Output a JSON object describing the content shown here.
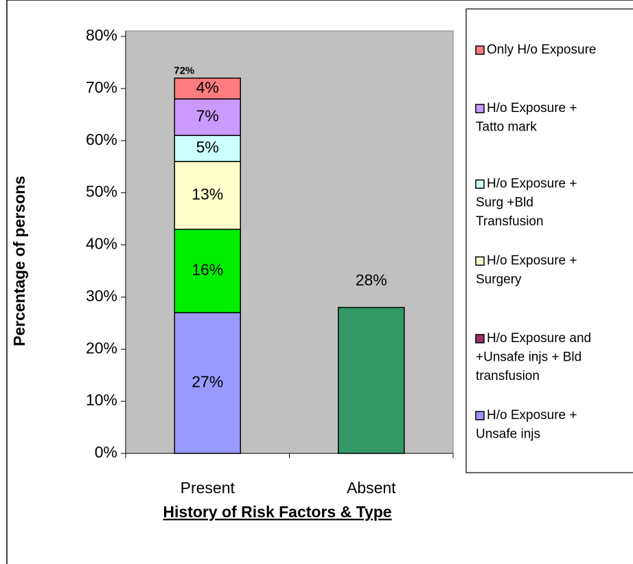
{
  "chart_data": {
    "type": "stacked_bar",
    "y_axis_label": "Percentage of persons",
    "x_axis_label": "History of Risk Factors & Type",
    "categories": [
      "Present",
      "Absent"
    ],
    "ylim": [
      0,
      80
    ],
    "yticks": [
      {
        "value": 0,
        "label": "0%"
      },
      {
        "value": 10,
        "label": "10%"
      },
      {
        "value": 20,
        "label": "20%"
      },
      {
        "value": 30,
        "label": "30%"
      },
      {
        "value": 40,
        "label": "40%"
      },
      {
        "value": 50,
        "label": "50%"
      },
      {
        "value": 60,
        "label": "60%"
      },
      {
        "value": 70,
        "label": "70%"
      },
      {
        "value": 80,
        "label": "80%"
      }
    ],
    "series": [
      {
        "name": "H/o Exposure +\nUnsafe injs",
        "color": "#9999ff",
        "values": [
          27,
          null
        ],
        "value_labels": [
          "27%",
          null
        ]
      },
      {
        "name": "H/o Exposure and\n+Unsafe injs + Bld\ntransfusion",
        "color": "#00ee00",
        "legend_color": "#993366",
        "values": [
          16,
          null
        ],
        "value_labels": [
          "16%",
          null
        ]
      },
      {
        "name": "H/o Exposure +\nSurgery",
        "color": "#ffffcc",
        "values": [
          13,
          null
        ],
        "value_labels": [
          "13%",
          null
        ]
      },
      {
        "name": "H/o Exposure +\nSurg +Bld\nTransfusion",
        "color": "#ccffff",
        "values": [
          5,
          null
        ],
        "value_labels": [
          "5%",
          null
        ]
      },
      {
        "name": "H/o Exposure +\nTatto mark",
        "color": "#cc99ff",
        "values": [
          7,
          null
        ],
        "value_labels": [
          "7%",
          null
        ]
      },
      {
        "name": "Only H/o Exposure",
        "color": "#ff7c80",
        "values": [
          4,
          null
        ],
        "value_labels": [
          "4%",
          null
        ]
      },
      {
        "color": "#339966",
        "values": [
          null,
          28
        ],
        "value_labels": [
          null,
          "28%"
        ]
      }
    ],
    "total_labels": [
      {
        "value": 72,
        "label": "72%"
      }
    ],
    "plot_background": "#c0c0c0"
  }
}
